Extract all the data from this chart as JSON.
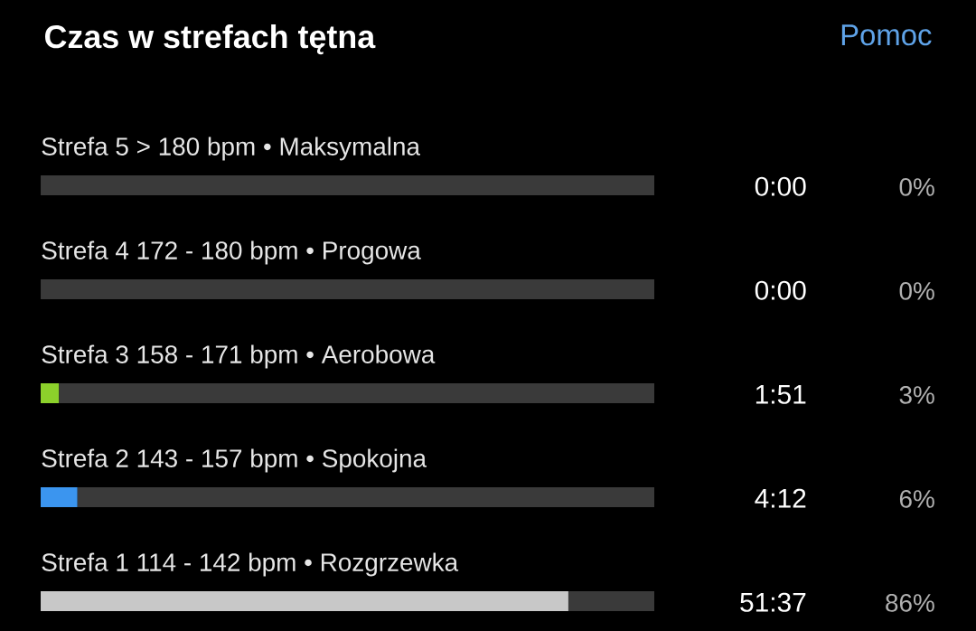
{
  "chart_data": {
    "type": "bar",
    "orientation": "horizontal",
    "stacked": true,
    "title": "Czas w strefach tętna",
    "categories": [
      "Strefa 5   > 180 bpm • Maksymalna",
      "Strefa 4   172 - 180 bpm • Progowa",
      "Strefa 3   158 - 171 bpm • Aerobowa",
      "Strefa 2   143 - 157 bpm • Spokojna",
      "Strefa 1   114 - 142 bpm • Rozgrzewka"
    ],
    "series": [
      {
        "colors": [
          null,
          null,
          "#8cd12b",
          "#3b95ef",
          "#c8c8c8"
        ],
        "values": [
          0,
          0,
          3,
          6,
          86
        ],
        "value_labels": [
          "0%",
          "0%",
          "3%",
          "6%",
          "86%"
        ]
      },
      {
        "color": "#3a3a3a",
        "values": [
          100,
          100,
          97,
          94,
          14
        ]
      }
    ],
    "xlim": [
      0,
      100
    ],
    "annotations": [
      "Pomoc",
      "0:00",
      "0:00",
      "1:51",
      "4:12",
      "51:37"
    ]
  }
}
